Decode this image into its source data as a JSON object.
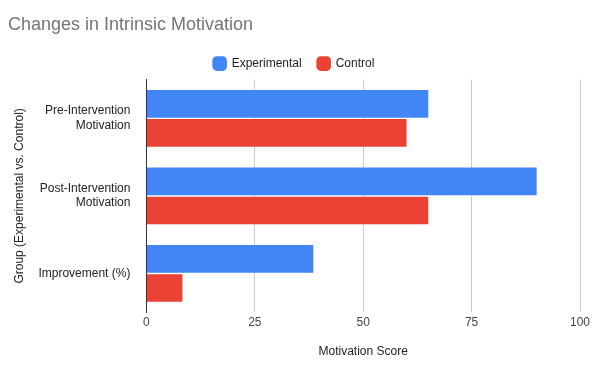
{
  "chart_data": {
    "type": "bar",
    "title": "Changes in Intrinsic Motivation",
    "orientation": "horizontal",
    "categories": [
      "Pre-Intervention Motivation",
      "Post-Intervention Motivation",
      "Improvement (%)"
    ],
    "series": [
      {
        "name": "Experimental",
        "color": "#4285f4",
        "values": [
          65,
          90,
          38.5
        ]
      },
      {
        "name": "Control",
        "color": "#ea4335",
        "values": [
          60,
          65,
          8.3
        ]
      }
    ],
    "x_label": "Motivation Score",
    "y_label": "Group (Experimental vs. Control)",
    "xlim": [
      0,
      100
    ],
    "xticks": [
      0,
      25,
      50,
      75,
      100
    ],
    "grid": true,
    "legend": "top"
  }
}
